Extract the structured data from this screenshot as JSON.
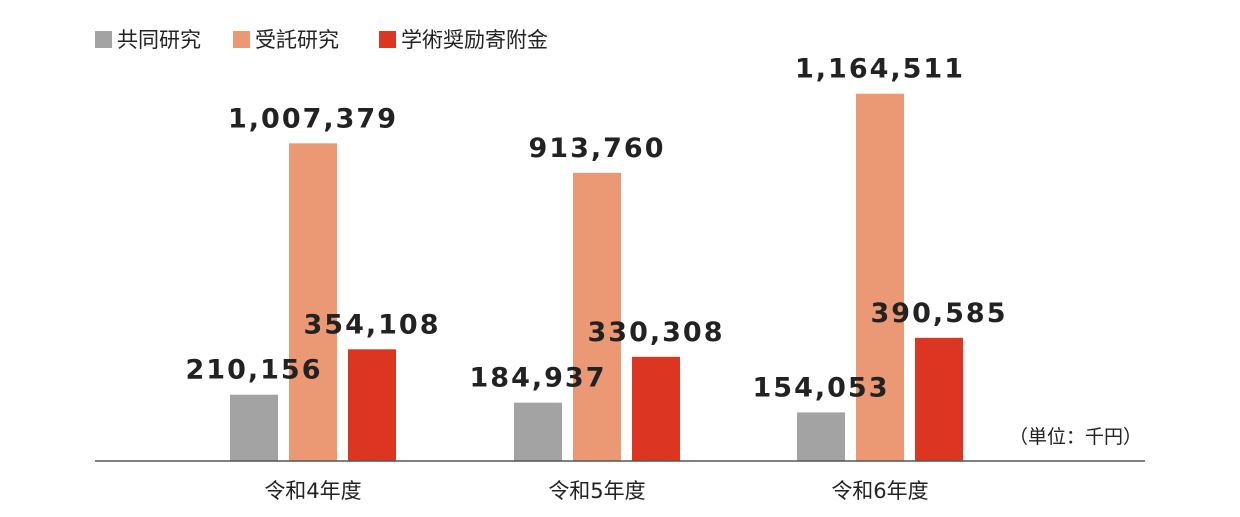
{
  "chart_data": {
    "type": "bar",
    "categories": [
      "令和4年度",
      "令和5年度",
      "令和6年度"
    ],
    "series": [
      {
        "name": "共同研究",
        "values": [
          210156,
          184937,
          154053
        ],
        "labels": [
          "210,156",
          "184,937",
          "154,053"
        ],
        "color": "#a3a3a3"
      },
      {
        "name": "受託研究",
        "values": [
          1007379,
          913760,
          1164511
        ],
        "labels": [
          "1,007,379",
          "913,760",
          "1,164,511"
        ],
        "color": "#eb9975"
      },
      {
        "name": "学術奨励寄附金",
        "values": [
          354108,
          330308,
          390585
        ],
        "labels": [
          "354,108",
          "330,308",
          "390,585"
        ],
        "color": "#dc3622"
      }
    ],
    "unit_note": "（単位：千円）",
    "ylim": [
      0,
      1300000
    ],
    "legend": "top-left",
    "grid": false
  }
}
